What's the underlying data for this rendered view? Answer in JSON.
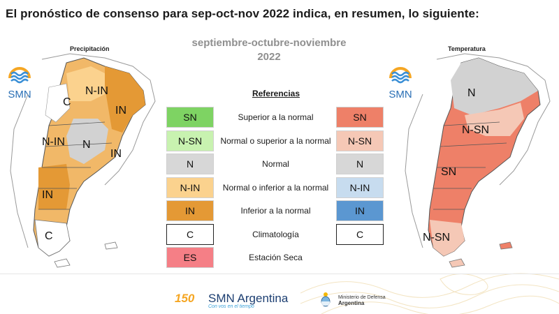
{
  "header": {
    "title": "El pronóstico de consenso para  sep-oct-nov 2022 indica, en resumen, lo siguiente:",
    "period_line1": "septiembre-octubre-noviembre",
    "period_line2": "2022"
  },
  "maps": {
    "left": {
      "title": "Precipitación",
      "logo_text": "SMN",
      "zones": [
        "N-IN",
        "C",
        "IN",
        "N-IN",
        "N",
        "IN",
        "IN",
        "C"
      ]
    },
    "right": {
      "title": "Temperatura",
      "logo_text": "SMN",
      "zones": [
        "N",
        "N-SN",
        "SN",
        "N-SN"
      ]
    }
  },
  "legend": {
    "title": "Referencias",
    "rows": [
      {
        "precip_code": "SN",
        "label": "Superior a la normal",
        "temp_code": "SN",
        "precip_color": "#7ed363",
        "temp_color": "#ee8068"
      },
      {
        "precip_code": "N-SN",
        "label": "Normal o superior a la normal",
        "temp_code": "N-SN",
        "precip_color": "#c8f2b0",
        "temp_color": "#f5c8b6"
      },
      {
        "precip_code": "N",
        "label": "Normal",
        "temp_code": "N",
        "precip_color": "#d7d7d7",
        "temp_color": "#d7d7d7"
      },
      {
        "precip_code": "N-IN",
        "label": "Normal o inferior a la normal",
        "temp_code": "N-IN",
        "precip_color": "#fbd28e",
        "temp_color": "#c7dcef"
      },
      {
        "precip_code": "IN",
        "label": "Inferior a la normal",
        "temp_code": "IN",
        "precip_color": "#e49935",
        "temp_color": "#5b97d1"
      },
      {
        "precip_code": "C",
        "label": "Climatología",
        "temp_code": "C",
        "precip_color": "#ffffff",
        "temp_color": "#ffffff"
      },
      {
        "precip_code": "ES",
        "label": "Estación Seca",
        "precip_color": "#f57f86"
      }
    ]
  },
  "footer": {
    "anniversary": "150",
    "brand": "SMN Argentina",
    "tagline": "Con vos en el tiempo",
    "ministry_line1": "Ministerio de Defensa",
    "ministry_line2": "Argentina"
  }
}
